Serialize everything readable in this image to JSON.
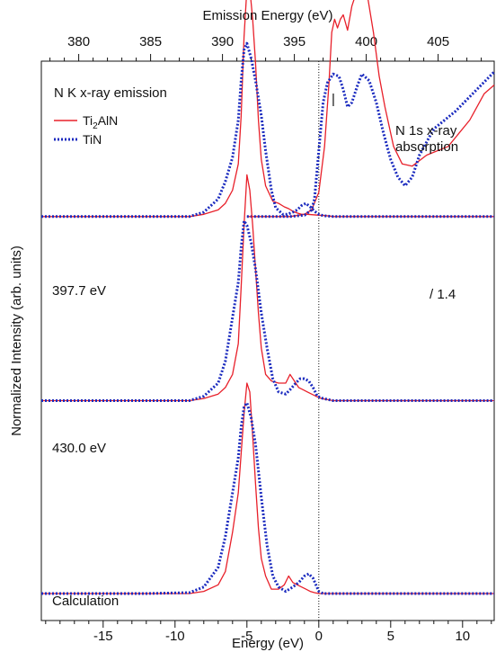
{
  "chart_data": {
    "type": "line",
    "title": "N K x-ray emission",
    "xlabel": "Energy (eV)",
    "xlabel_top": "Emission Energy (eV)",
    "ylabel": "Normalized Intensity (arb. units)",
    "xlim": [
      -19.3,
      12.2
    ],
    "xlim_top": [
      377.4,
      408.9
    ],
    "ylim": [
      0,
      12
    ],
    "xticks": [
      -15,
      -10,
      -5,
      0,
      5,
      10
    ],
    "xticks_top": [
      380,
      385,
      390,
      395,
      400,
      405
    ],
    "x_major_step": 5,
    "x_minor_step": 1,
    "grid": false,
    "vertical_reference_line_x": 0,
    "legend": {
      "placement": "top-left",
      "entries": [
        {
          "label_main": "Ti",
          "label_sub": "2",
          "label_rest": "AlN",
          "color": "#e8202a",
          "style": "solid"
        },
        {
          "label_main": "TiN",
          "label_sub": "",
          "label_rest": "",
          "color": "#1b2bbf",
          "style": "dotted"
        }
      ]
    },
    "annotations": {
      "exc_397": "397.7 eV",
      "exc_430": "430.0 eV",
      "calc": "Calculation",
      "absorption_line1": "N 1s x-ray",
      "absorption_line2": "absorption",
      "scale_note": "/ 1.4",
      "marker": "|"
    },
    "series": [
      {
        "name": "Ti2AlN",
        "group": "397.7 eV",
        "offset": 8.6,
        "x": [
          -19.3,
          -12,
          -9,
          -8,
          -7,
          -6.5,
          -6,
          -5.6,
          -5.4,
          -5.2,
          -5.0,
          -4.9,
          -4.8,
          -4.6,
          -4.4,
          -4.2,
          -4.0,
          -3.7,
          -3.2,
          -2.8,
          -2.4,
          -2.1,
          -1.8,
          -1.5,
          -1.2,
          -0.8,
          -0.4,
          0,
          0.5,
          1,
          2,
          4,
          8,
          12.2
        ],
        "y": [
          0,
          0,
          0,
          0.05,
          0.15,
          0.3,
          0.6,
          1.2,
          2.3,
          4.1,
          5.2,
          5.3,
          5.2,
          4.5,
          3.5,
          2.2,
          1.3,
          0.7,
          0.35,
          0.3,
          0.22,
          0.18,
          0.12,
          0.08,
          0.05,
          0.05,
          0.04,
          0.03,
          0.02,
          0,
          0,
          0,
          0,
          0
        ]
      },
      {
        "name": "TiN",
        "group": "397.7 eV",
        "offset": 8.6,
        "x": [
          -19.3,
          -12,
          -9,
          -8,
          -7,
          -6.5,
          -6,
          -5.6,
          -5.4,
          -5.2,
          -5.0,
          -4.7,
          -4.4,
          -4.0,
          -3.7,
          -3.3,
          -3.0,
          -2.5,
          -2.2,
          -1.8,
          -1.5,
          -1.2,
          -0.9,
          -0.6,
          -0.3,
          0,
          0.3,
          1,
          2,
          4,
          8,
          12.2
        ],
        "y": [
          0,
          0,
          0,
          0.1,
          0.4,
          0.8,
          1.35,
          2.2,
          3.1,
          3.8,
          3.95,
          3.6,
          3.1,
          2.3,
          1.5,
          0.6,
          0.2,
          0.05,
          0.05,
          0.1,
          0.15,
          0.25,
          0.3,
          0.22,
          0.12,
          0.05,
          0.02,
          0,
          0,
          0,
          0,
          0
        ]
      },
      {
        "name": "Ti2AlN",
        "group": "N 1s x-ray absorption",
        "offset": 8.6,
        "x": [
          -5,
          -2,
          -1,
          -0.5,
          0,
          0.4,
          0.7,
          0.9,
          1.1,
          1.3,
          1.5,
          1.7,
          2.0,
          2.3,
          2.6,
          3.0,
          3.4,
          3.8,
          4.2,
          4.6,
          5.2,
          5.8,
          6.5,
          7.5,
          9,
          10.5,
          11.5,
          12.2
        ],
        "y": [
          0,
          0,
          0.05,
          0.15,
          0.55,
          1.6,
          3.0,
          4.2,
          4.5,
          4.3,
          4.5,
          4.6,
          4.25,
          4.8,
          5.1,
          5.3,
          5.0,
          4.2,
          3.2,
          2.5,
          1.6,
          1.2,
          1.15,
          1.4,
          1.6,
          2.2,
          2.8,
          3.0
        ]
      },
      {
        "name": "TiN",
        "group": "N 1s x-ray absorption",
        "offset": 8.6,
        "x": [
          -5,
          -2,
          -1,
          -0.5,
          -0.3,
          0,
          0.3,
          0.6,
          1.0,
          1.4,
          1.7,
          2.0,
          2.3,
          2.7,
          3.0,
          3.5,
          4.0,
          4.5,
          5.0,
          5.5,
          6.0,
          6.5,
          7.0,
          8.0,
          9.5,
          11,
          12.2
        ],
        "y": [
          0,
          0,
          0.03,
          0.15,
          0.4,
          1.5,
          2.6,
          3.05,
          3.25,
          3.2,
          2.9,
          2.5,
          2.6,
          3.0,
          3.25,
          3.1,
          2.6,
          1.9,
          1.3,
          0.9,
          0.7,
          0.9,
          1.4,
          2.0,
          2.4,
          2.9,
          3.3
        ]
      },
      {
        "name": "Ti2AlN",
        "group": "430.0 eV",
        "offset": 4.4,
        "x": [
          -19.3,
          -12,
          -9,
          -8,
          -7,
          -6.5,
          -6,
          -5.6,
          -5.4,
          -5.2,
          -5.0,
          -4.8,
          -4.6,
          -4.4,
          -4.2,
          -4.0,
          -3.7,
          -3.3,
          -2.8,
          -2.3,
          -2.0,
          -1.7,
          -1.4,
          -1.1,
          -0.8,
          -0.5,
          -0.2,
          0.2,
          1,
          3,
          8,
          12.2
        ],
        "y": [
          0,
          0,
          0,
          0.05,
          0.15,
          0.3,
          0.6,
          1.3,
          2.6,
          4.0,
          5.15,
          4.8,
          4.0,
          3.0,
          2.0,
          1.2,
          0.6,
          0.45,
          0.4,
          0.4,
          0.6,
          0.45,
          0.3,
          0.25,
          0.2,
          0.15,
          0.1,
          0.05,
          0,
          0,
          0,
          0
        ]
      },
      {
        "name": "TiN",
        "group": "430.0 eV",
        "offset": 4.4,
        "x": [
          -19.3,
          -12,
          -9,
          -8,
          -7,
          -6.5,
          -6,
          -5.6,
          -5.4,
          -5.2,
          -5.0,
          -4.7,
          -4.4,
          -4.0,
          -3.6,
          -3.2,
          -2.8,
          -2.3,
          -2.0,
          -1.6,
          -1.3,
          -1.0,
          -0.7,
          -0.4,
          -0.1,
          0.3,
          1,
          3,
          8,
          12.2
        ],
        "y": [
          0,
          0,
          0,
          0.1,
          0.4,
          0.9,
          1.9,
          2.7,
          3.5,
          4.1,
          4.0,
          3.6,
          3.0,
          2.0,
          1.2,
          0.5,
          0.2,
          0.15,
          0.25,
          0.4,
          0.5,
          0.5,
          0.45,
          0.3,
          0.1,
          0.05,
          0,
          0,
          0,
          0
        ]
      },
      {
        "name": "Ti2AlN",
        "group": "Calculation",
        "offset": 0,
        "x": [
          -19.3,
          -12,
          -9,
          -8,
          -7,
          -6.5,
          -6,
          -5.6,
          -5.4,
          -5.2,
          -5.0,
          -4.8,
          -4.6,
          -4.4,
          -4.2,
          -4.0,
          -3.7,
          -3.3,
          -2.8,
          -2.4,
          -2.1,
          -1.8,
          -1.5,
          -1.2,
          -0.9,
          -0.6,
          -0.3,
          0,
          0.5,
          1,
          3,
          8,
          12.2
        ],
        "y": [
          0,
          0,
          0,
          0.05,
          0.2,
          0.5,
          1.4,
          2.3,
          3.2,
          4.1,
          4.8,
          4.6,
          3.6,
          2.5,
          1.5,
          0.8,
          0.4,
          0.1,
          0.1,
          0.2,
          0.4,
          0.25,
          0.2,
          0.15,
          0.1,
          0.05,
          0.02,
          0,
          0,
          0,
          0,
          0,
          0
        ]
      },
      {
        "name": "TiN",
        "group": "Calculation",
        "offset": 0,
        "x": [
          -19.3,
          -12,
          -9,
          -8,
          -7,
          -6.5,
          -6,
          -5.6,
          -5.4,
          -5.2,
          -5.0,
          -4.7,
          -4.4,
          -4.0,
          -3.6,
          -3.2,
          -2.8,
          -2.3,
          -1.8,
          -1.4,
          -1.0,
          -0.7,
          -0.4,
          -0.2,
          0,
          0.3,
          1,
          3,
          8,
          12.2
        ],
        "y": [
          0,
          0,
          0.02,
          0.15,
          0.6,
          1.3,
          2.3,
          3.1,
          3.8,
          4.25,
          4.35,
          4.0,
          3.4,
          2.2,
          1.1,
          0.4,
          0.15,
          0.05,
          0.15,
          0.25,
          0.4,
          0.45,
          0.35,
          0.2,
          0.05,
          0,
          0,
          0,
          0,
          0
        ]
      }
    ]
  }
}
